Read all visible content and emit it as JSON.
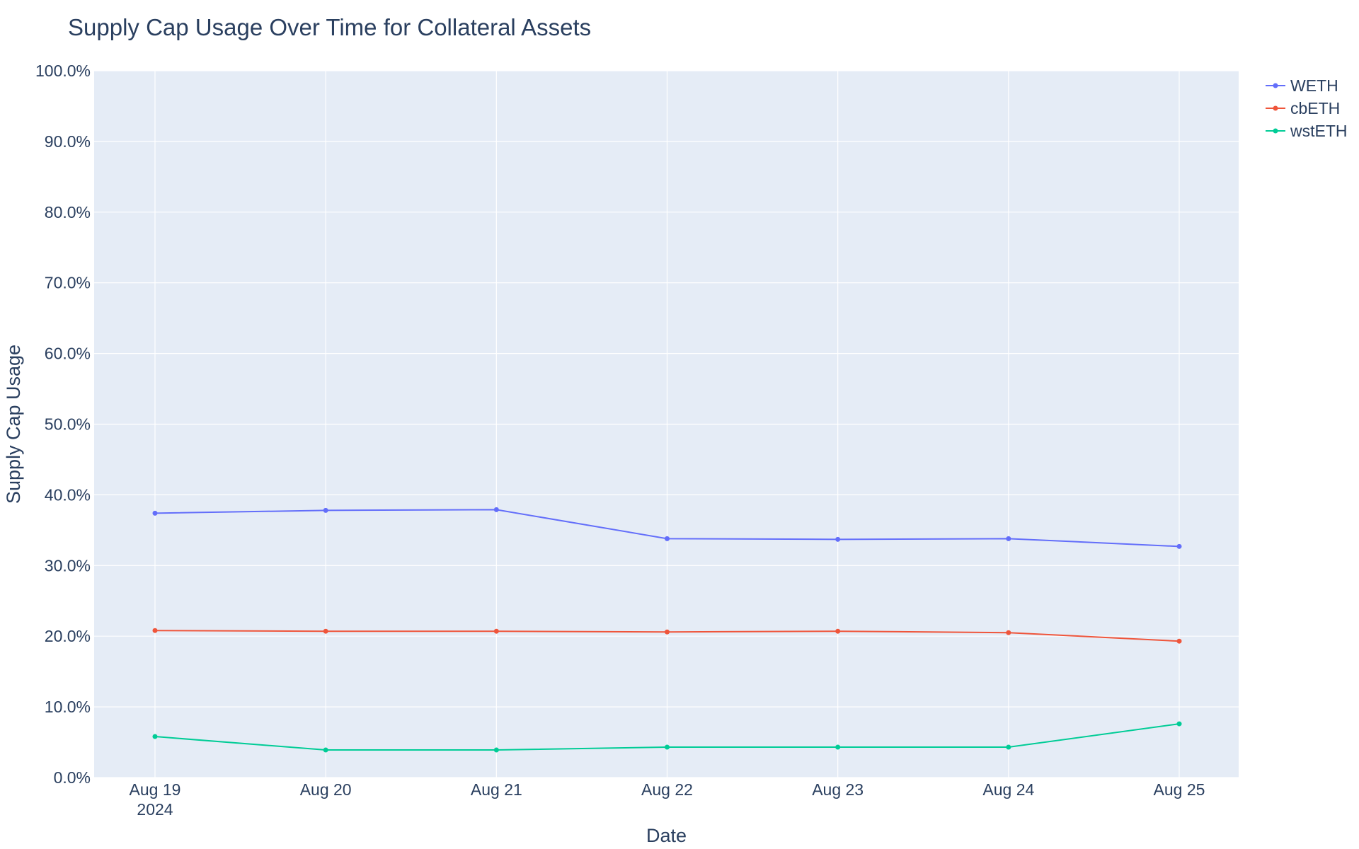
{
  "chart_data": {
    "type": "line",
    "title": "Supply Cap Usage Over Time for Collateral Assets",
    "xlabel": "Date",
    "ylabel": "Supply Cap Usage",
    "x": [
      "Aug 19",
      "Aug 20",
      "Aug 21",
      "Aug 22",
      "Aug 23",
      "Aug 24",
      "Aug 25"
    ],
    "x_year_label": "2024",
    "ylim": [
      0,
      100
    ],
    "y_ticks": [
      "0.0%",
      "10.0%",
      "20.0%",
      "30.0%",
      "40.0%",
      "50.0%",
      "60.0%",
      "70.0%",
      "80.0%",
      "90.0%",
      "100.0%"
    ],
    "grid": true,
    "legend_position": "top-right",
    "background": "#e5ecf6",
    "series": [
      {
        "name": "WETH",
        "color": "#636efa",
        "values": [
          37.4,
          37.8,
          37.9,
          33.8,
          33.7,
          33.8,
          32.7
        ]
      },
      {
        "name": "cbETH",
        "color": "#ef553b",
        "values": [
          20.8,
          20.7,
          20.7,
          20.6,
          20.7,
          20.5,
          19.3
        ]
      },
      {
        "name": "wstETH",
        "color": "#00cc96",
        "values": [
          5.8,
          3.9,
          3.9,
          4.3,
          4.3,
          4.3,
          7.6
        ]
      }
    ]
  }
}
